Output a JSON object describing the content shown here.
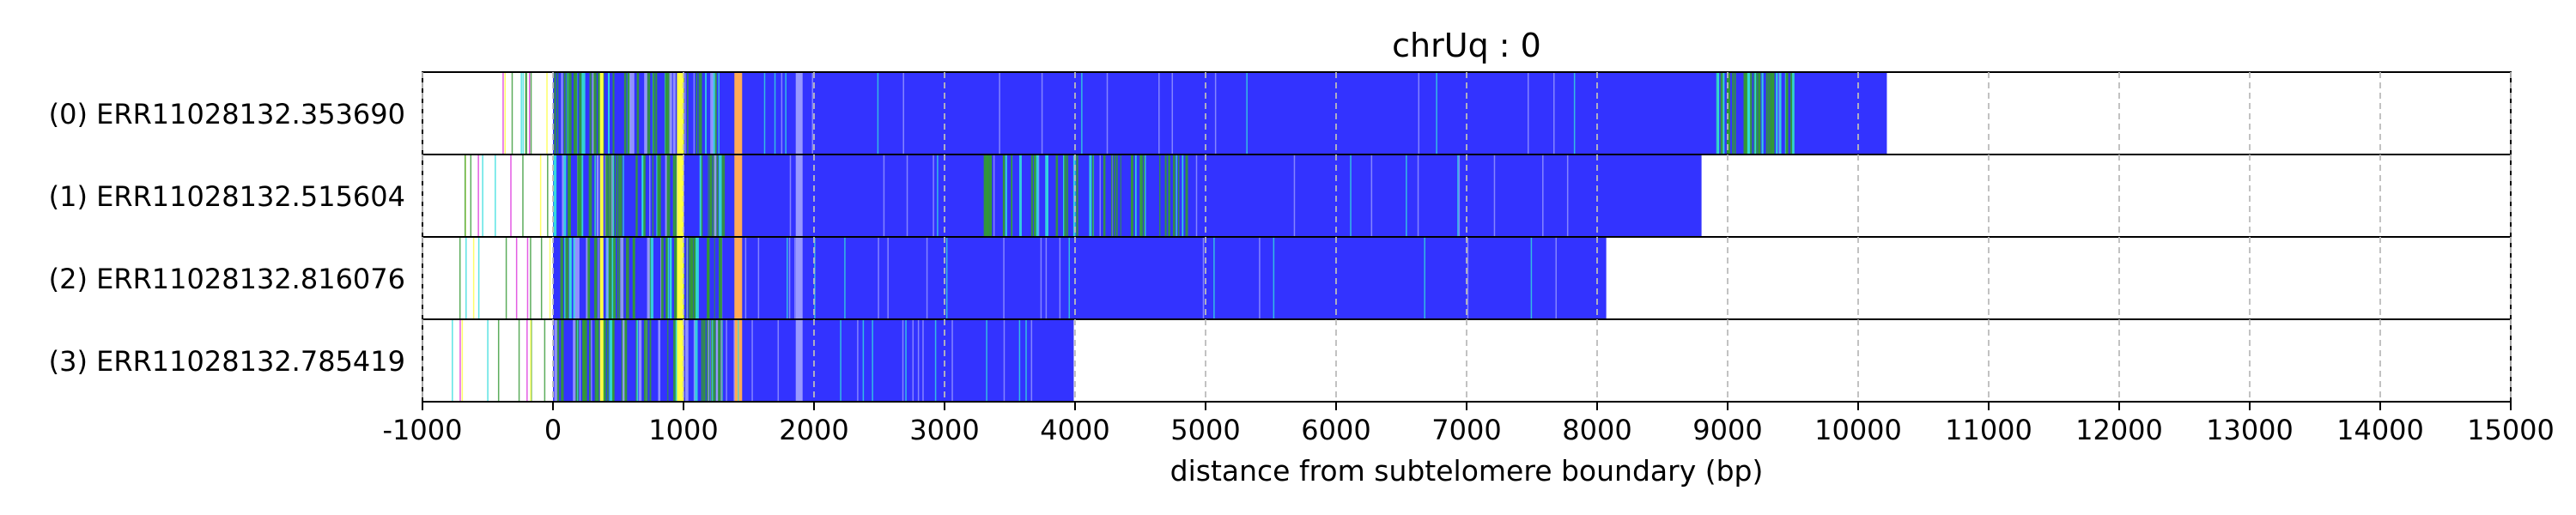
{
  "chart_data": {
    "type": "bar",
    "title": "chrUq : 0",
    "xlabel": "distance from subtelomere boundary (bp)",
    "ylabel": "",
    "xlim": [
      -1000,
      15000
    ],
    "xticks": [
      -1000,
      0,
      1000,
      2000,
      3000,
      4000,
      5000,
      6000,
      7000,
      8000,
      9000,
      10000,
      11000,
      12000,
      13000,
      14000,
      15000
    ],
    "grid": "vertical dashed",
    "reads": [
      {
        "label": "(0) ERR11028132.353690",
        "start": -420,
        "end": 10220
      },
      {
        "label": "(1) ERR11028132.515604",
        "start": -880,
        "end": 8800
      },
      {
        "label": "(2) ERR11028132.816076",
        "start": -870,
        "end": 8070
      },
      {
        "label": "(3) ERR11028132.785419",
        "start": -860,
        "end": 3990
      }
    ],
    "colors": {
      "body": "#3333ff",
      "yellow": "#ffff44",
      "orange": "#ffaa55",
      "green": "#339933",
      "cyan": "#33dddd",
      "magenta": "#dd33dd",
      "light": "#9999ff",
      "grid": "#bbbbbb"
    }
  }
}
